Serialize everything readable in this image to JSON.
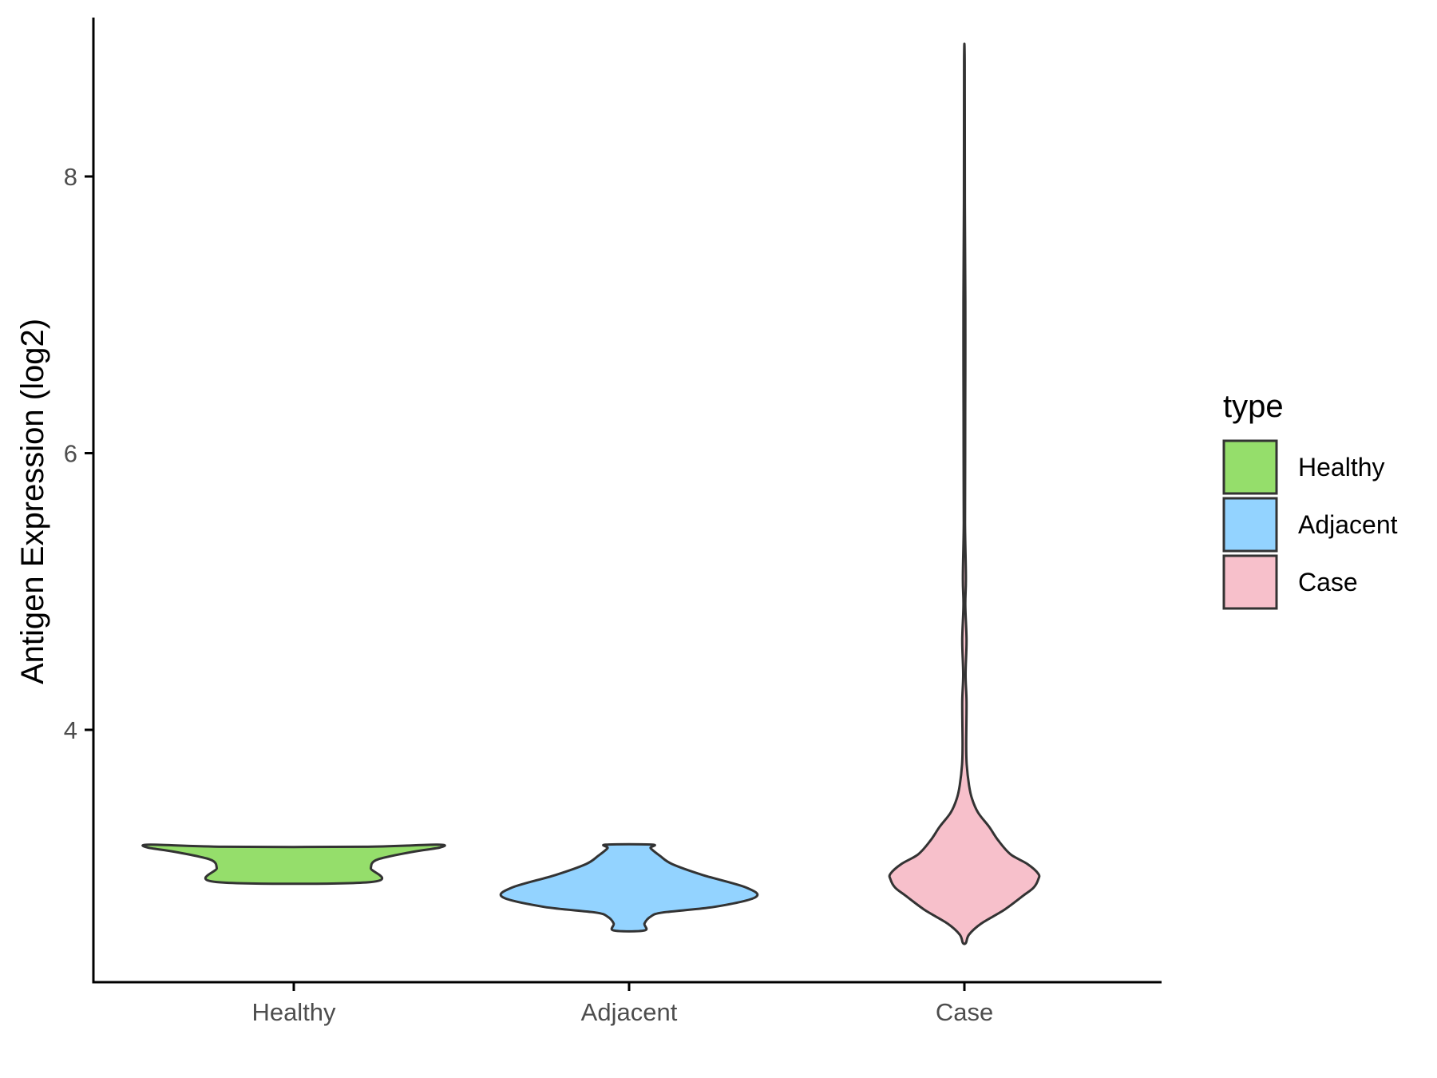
{
  "chart_data": {
    "type": "violin",
    "title": "",
    "xlabel": "",
    "ylabel": "Antigen Expression (log2)",
    "categories": [
      "Healthy",
      "Adjacent",
      "Case"
    ],
    "y_ticks": [
      "4",
      "6",
      "8"
    ],
    "ylim": [
      2.15,
      9.1
    ],
    "grid": false,
    "legend": {
      "title": "type",
      "position": "right",
      "entries": [
        {
          "label": "Healthy",
          "color": "#95DE6B"
        },
        {
          "label": "Adjacent",
          "color": "#93D3FF"
        },
        {
          "label": "Case",
          "color": "#F7C0CB"
        }
      ]
    },
    "series": [
      {
        "category": "Healthy",
        "color": "#95DE6B",
        "density": [
          [
            2.9,
            0.5
          ],
          [
            3.0,
            0.5
          ],
          [
            3.05,
            0.52
          ],
          [
            3.08,
            0.6
          ],
          [
            3.12,
            0.78
          ],
          [
            3.15,
            0.95
          ],
          [
            3.17,
            0.93
          ],
          [
            3.155,
            0.45
          ]
        ]
      },
      {
        "category": "Adjacent",
        "color": "#93D3FF",
        "density": [
          [
            2.55,
            0.1
          ],
          [
            2.6,
            0.1
          ],
          [
            2.65,
            0.14
          ],
          [
            2.68,
            0.22
          ],
          [
            2.72,
            0.55
          ],
          [
            2.79,
            0.82
          ],
          [
            2.86,
            0.76
          ],
          [
            2.95,
            0.48
          ],
          [
            3.03,
            0.28
          ],
          [
            3.09,
            0.2
          ],
          [
            3.145,
            0.14
          ],
          [
            3.17,
            0.15
          ]
        ]
      },
      {
        "category": "Case",
        "color": "#F7C0CB",
        "density": [
          [
            2.46,
            0.01
          ],
          [
            2.52,
            0.03
          ],
          [
            2.6,
            0.11
          ],
          [
            2.7,
            0.26
          ],
          [
            2.8,
            0.38
          ],
          [
            2.86,
            0.45
          ],
          [
            2.92,
            0.48
          ],
          [
            2.96,
            0.48
          ],
          [
            3.03,
            0.41
          ],
          [
            3.1,
            0.3
          ],
          [
            3.2,
            0.22
          ],
          [
            3.3,
            0.16
          ],
          [
            3.4,
            0.09
          ],
          [
            3.5,
            0.05
          ],
          [
            3.6,
            0.03
          ],
          [
            3.75,
            0.015
          ],
          [
            3.9,
            0.012
          ],
          [
            4.2,
            0.014
          ],
          [
            4.4,
            0.008
          ],
          [
            4.65,
            0.014
          ],
          [
            4.9,
            0.006
          ],
          [
            5.1,
            0.01
          ],
          [
            5.5,
            0.004
          ],
          [
            6.0,
            0.005
          ],
          [
            6.6,
            0.006
          ],
          [
            7.1,
            0.006
          ],
          [
            7.8,
            0.003
          ],
          [
            8.83,
            0.002
          ]
        ]
      }
    ]
  }
}
